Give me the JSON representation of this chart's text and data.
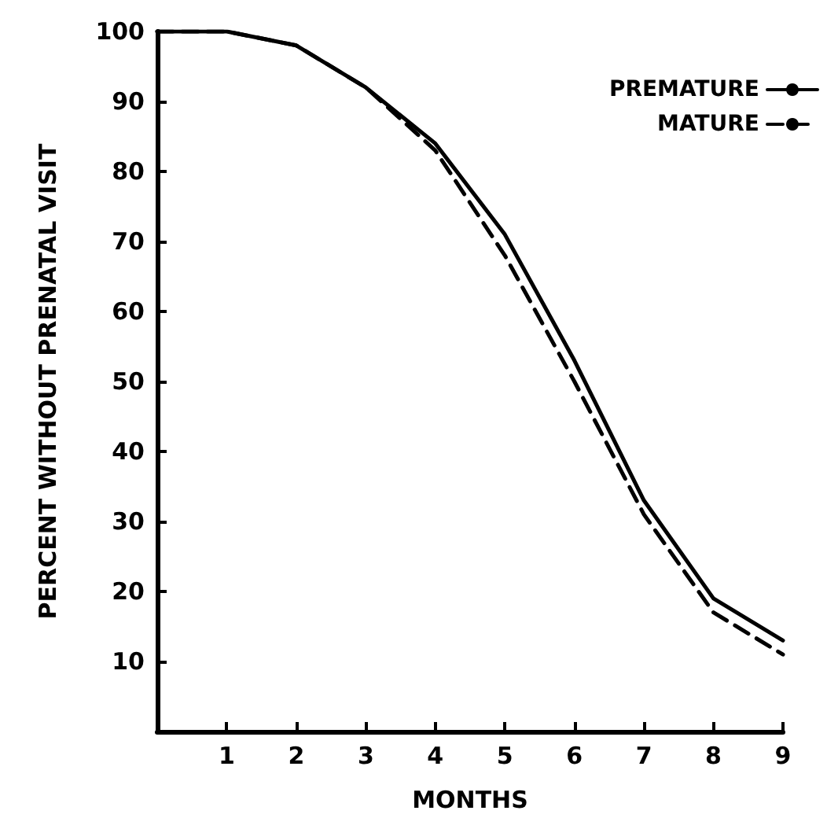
{
  "chart_data": {
    "type": "line",
    "xlabel": "MONTHS",
    "ylabel": "PERCENT WITHOUT PRENATAL VISIT",
    "x": [
      0,
      1,
      2,
      3,
      4,
      5,
      6,
      7,
      8,
      9
    ],
    "series": [
      {
        "name": "PREMATURE",
        "color": "#000000",
        "line_style": "solid",
        "values": [
          100,
          100,
          98,
          92,
          84,
          71,
          53,
          33,
          19,
          13
        ]
      },
      {
        "name": "MATURE",
        "color": "#000000",
        "line_style": "dashed",
        "values": [
          100,
          100,
          98,
          92,
          83,
          68,
          50,
          31,
          17,
          11
        ]
      }
    ],
    "xlim": [
      0,
      9
    ],
    "xticks": [
      1,
      2,
      3,
      4,
      5,
      6,
      7,
      8,
      9
    ],
    "ylim": [
      0,
      100
    ],
    "yticks": [
      10,
      20,
      30,
      40,
      50,
      60,
      70,
      80,
      90,
      100
    ],
    "legend": "top right",
    "grid": false,
    "marker": "none"
  }
}
